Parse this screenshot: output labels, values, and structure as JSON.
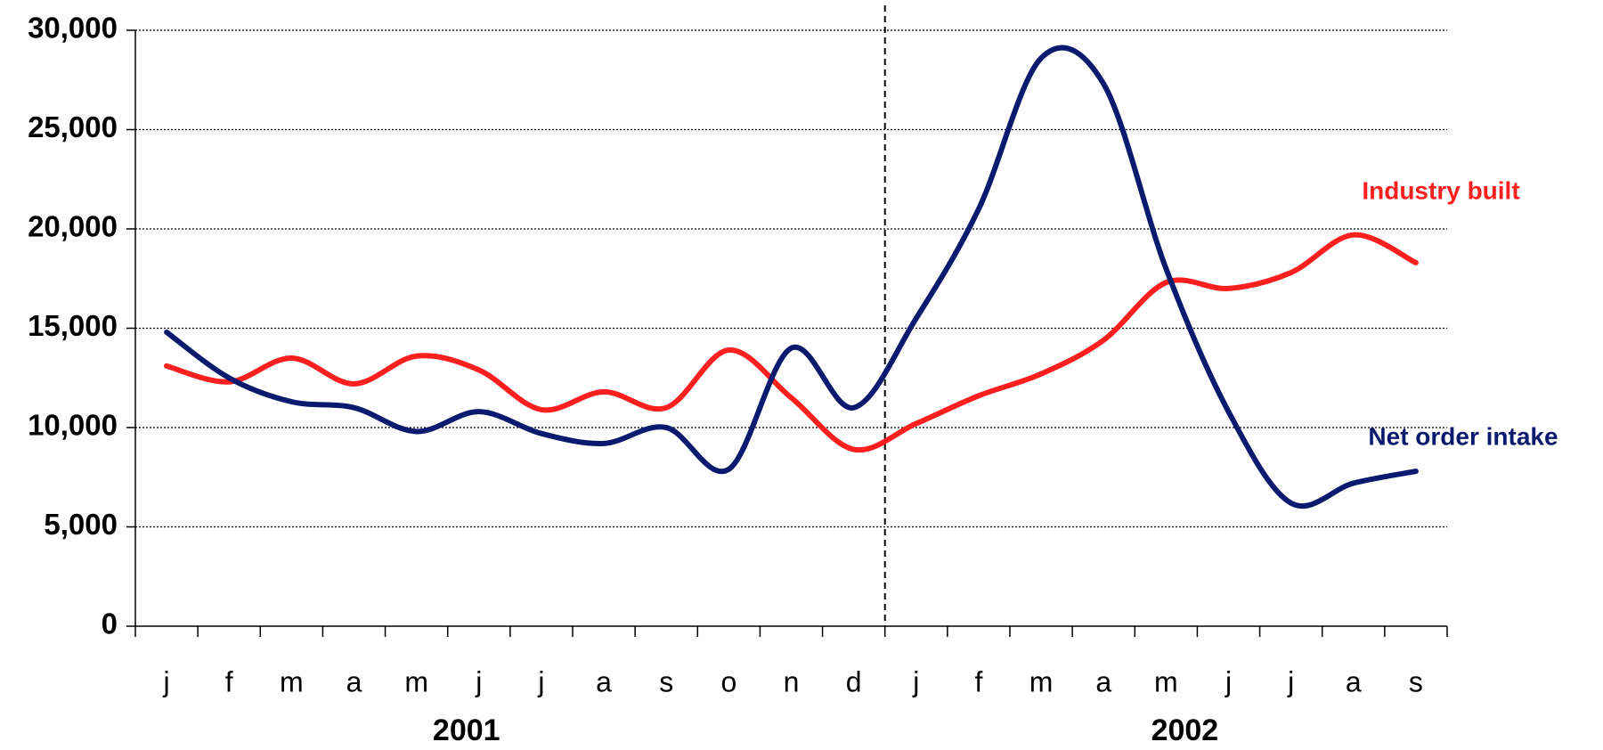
{
  "chart_data": {
    "type": "line",
    "categories": [
      "j",
      "f",
      "m",
      "a",
      "m",
      "j",
      "j",
      "a",
      "s",
      "o",
      "n",
      "d",
      "j",
      "f",
      "m",
      "a",
      "m",
      "j",
      "j",
      "a",
      "s"
    ],
    "year_labels": [
      "2001",
      "2002"
    ],
    "series": [
      {
        "name": "Industry built",
        "color": "#ff1f1f",
        "values": [
          13100,
          12300,
          13500,
          12200,
          13600,
          12900,
          10900,
          11800,
          11000,
          13900,
          11500,
          8900,
          10200,
          11600,
          12700,
          14400,
          17300,
          17000,
          17800,
          19700,
          18300
        ]
      },
      {
        "name": "Net order intake",
        "color": "#0a1a6e",
        "values": [
          14800,
          12500,
          11300,
          11000,
          9800,
          10800,
          9700,
          9200,
          10000,
          7900,
          14000,
          11000,
          15500,
          21000,
          28600,
          27300,
          18000,
          10800,
          6200,
          7200,
          7800
        ]
      }
    ],
    "ylim": [
      0,
      30000
    ],
    "yticks": [
      {
        "value": 0,
        "label": "0"
      },
      {
        "value": 5000,
        "label": "5,000"
      },
      {
        "value": 10000,
        "label": "10,000"
      },
      {
        "value": 15000,
        "label": "15,000"
      },
      {
        "value": 20000,
        "label": "20,000"
      },
      {
        "value": 25000,
        "label": "25,000"
      },
      {
        "value": 30000,
        "label": "30,000"
      }
    ],
    "grid": true
  }
}
